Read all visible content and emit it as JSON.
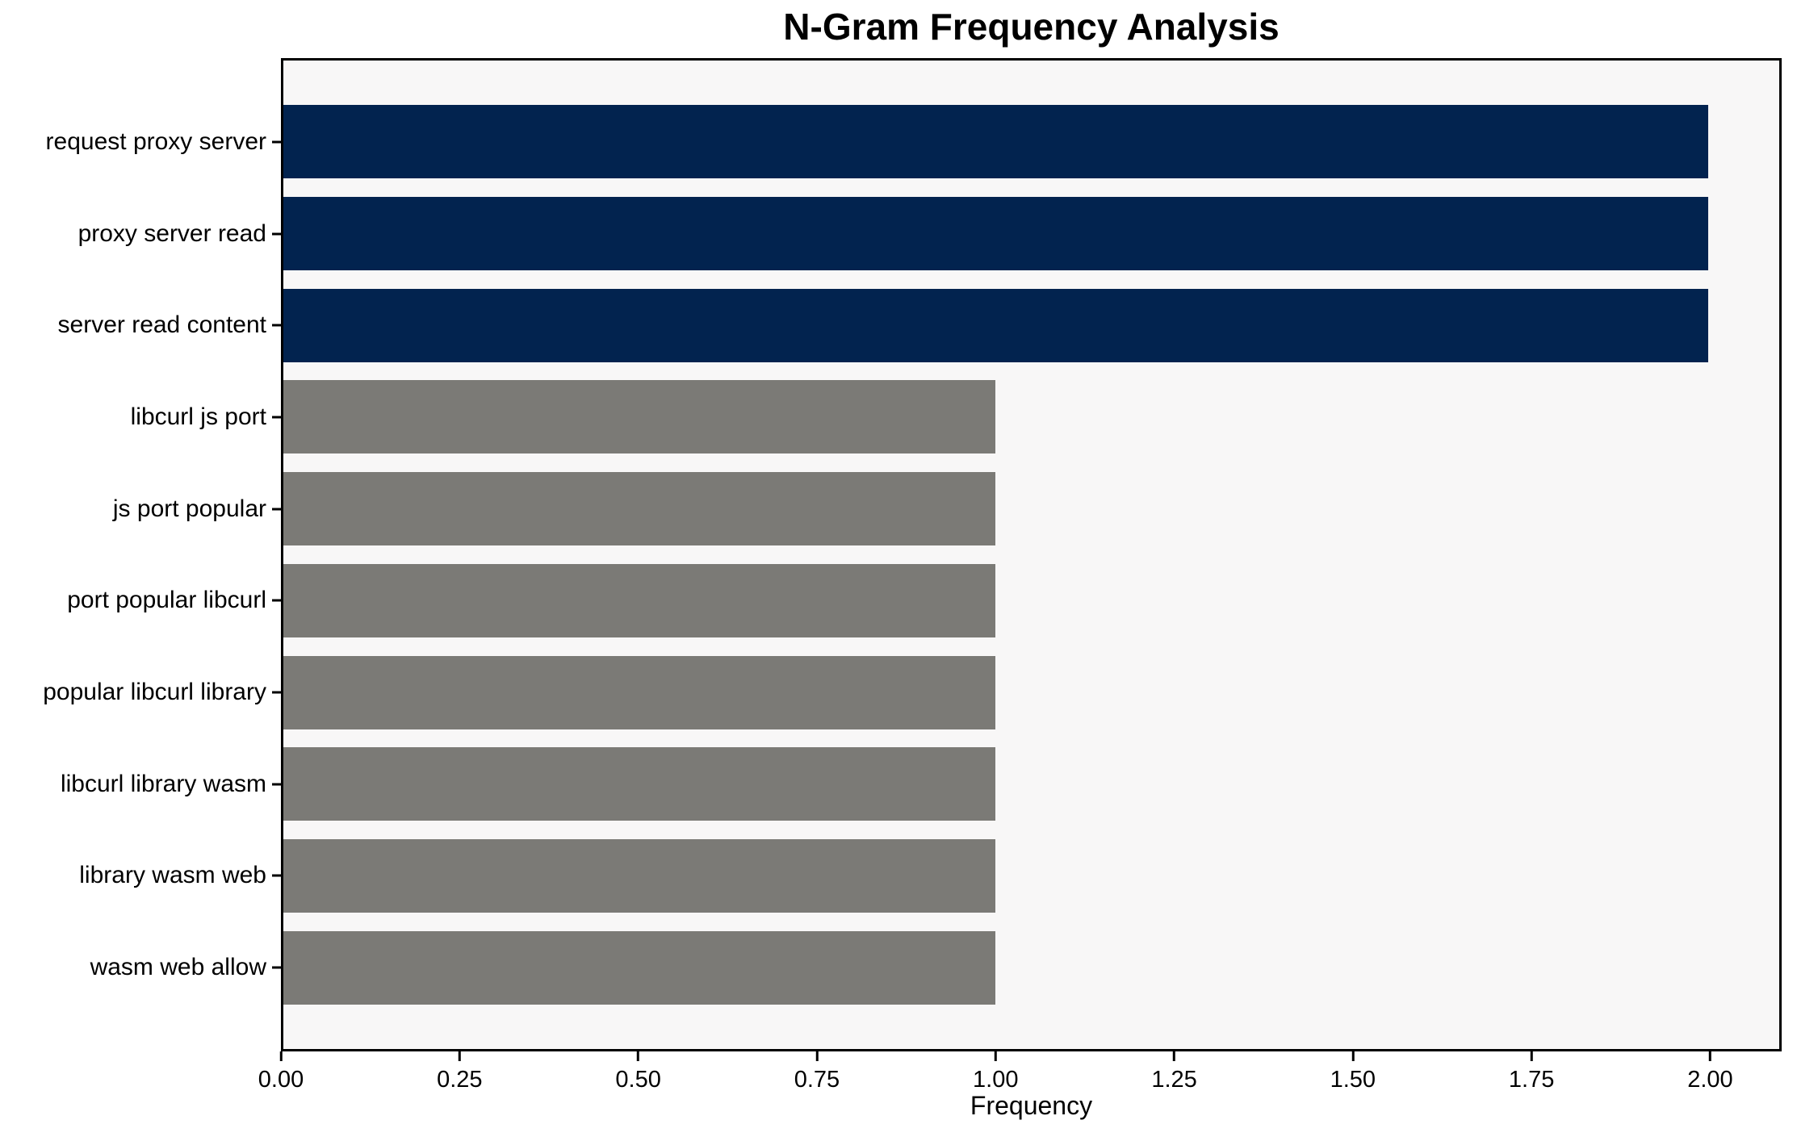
{
  "chart_data": {
    "type": "bar",
    "orientation": "horizontal",
    "title": "N-Gram Frequency Analysis",
    "xlabel": "Frequency",
    "ylabel": "",
    "categories": [
      "request proxy server",
      "proxy server read",
      "server read content",
      "libcurl js port",
      "js port popular",
      "port popular libcurl",
      "popular libcurl library",
      "libcurl library wasm",
      "library wasm web",
      "wasm web allow"
    ],
    "values": [
      2,
      2,
      2,
      1,
      1,
      1,
      1,
      1,
      1,
      1
    ],
    "colors": [
      "#02234f",
      "#02234f",
      "#02234f",
      "#7b7a76",
      "#7b7a76",
      "#7b7a76",
      "#7b7a76",
      "#7b7a76",
      "#7b7a76",
      "#7b7a76"
    ],
    "xlim": [
      0,
      2.1
    ],
    "x_ticks": [
      0,
      0.25,
      0.5,
      0.75,
      1.0,
      1.25,
      1.5,
      1.75,
      2.0
    ],
    "x_tick_labels": [
      "0.00",
      "0.25",
      "0.50",
      "0.75",
      "1.00",
      "1.25",
      "1.50",
      "1.75",
      "2.00"
    ],
    "grid": false,
    "legend": null,
    "plot_background": "#f8f7f7",
    "figure_background": "#ffffff",
    "bar_area_fraction": 0.8
  }
}
